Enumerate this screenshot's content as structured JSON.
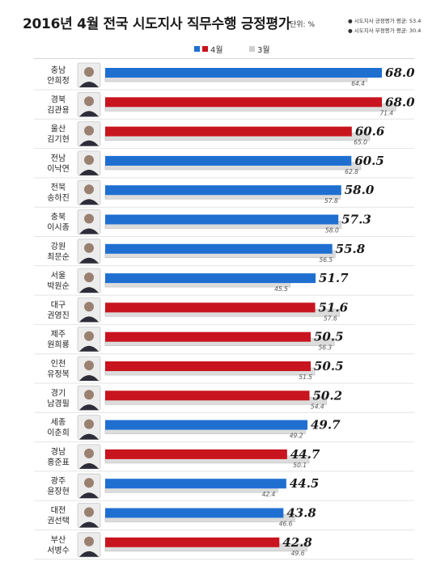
{
  "title": "2016년 4월 전국 시도지사 직무수행 긍정평가",
  "unit": "단위: %",
  "notes": [
    "● 시도지사 긍정평가 평균: 53.4",
    "● 시도지사 부정평가 평균: 30.4"
  ],
  "colors": {
    "blue": "#1f6fd1",
    "red": "#c8141e",
    "gray": "#dcdcdc",
    "gray_edge": "#bcbcbc"
  },
  "chart_data": {
    "type": "bar",
    "orientation": "horizontal",
    "series": [
      {
        "name": "4월",
        "values": [
          68.0,
          68.0,
          60.6,
          60.5,
          58.0,
          57.3,
          55.8,
          51.7,
          51.6,
          50.5,
          50.5,
          50.2,
          49.7,
          44.7,
          44.5,
          43.8,
          42.8
        ]
      },
      {
        "name": "3월",
        "values": [
          64.4,
          71.4,
          65.0,
          62.8,
          57.8,
          58.0,
          56.5,
          45.5,
          57.6,
          56.3,
          51.5,
          54.4,
          49.2,
          50.1,
          42.4,
          46.6,
          49.6
        ]
      }
    ],
    "regions": [
      "충남",
      "경북",
      "울산",
      "전남",
      "전북",
      "충북",
      "강원",
      "서울",
      "대구",
      "제주",
      "인천",
      "경기",
      "세종",
      "경남",
      "광주",
      "대전",
      "부산"
    ],
    "names": [
      "안희정",
      "김관용",
      "김기현",
      "이낙연",
      "송하진",
      "이시종",
      "최문순",
      "박원순",
      "권영진",
      "원희룡",
      "유정복",
      "남경필",
      "이춘희",
      "홍준표",
      "윤장현",
      "권선택",
      "서병수"
    ],
    "bar_colors": [
      "blue",
      "red",
      "red",
      "blue",
      "blue",
      "blue",
      "blue",
      "blue",
      "red",
      "red",
      "red",
      "red",
      "blue",
      "red",
      "blue",
      "blue",
      "red"
    ],
    "value_labels": [
      "68.0",
      "68.0",
      "60.6",
      "60.5",
      "58.0",
      "57.3",
      "55.8",
      "51.7",
      "51.6",
      "50.5",
      "50.5",
      "50.2",
      "49.7",
      "44.7",
      "44.5",
      "43.8",
      "42.8"
    ],
    "prev_labels": [
      "64.4",
      "71.4",
      "65.0",
      "62.8",
      "57.8",
      "58.0",
      "56.5",
      "45.5",
      "57.6",
      "56.3",
      "51.5",
      "54.4",
      "49.2",
      "50.1",
      "42.4",
      "46.6",
      "49.6"
    ],
    "xlim": [
      0,
      72
    ],
    "grid": false,
    "legend": "top-center"
  }
}
